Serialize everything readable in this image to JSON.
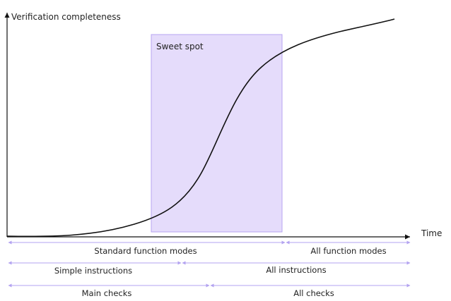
{
  "colors": {
    "axis": "#111111",
    "curve": "#111111",
    "region_fill": "#e5dcfb",
    "region_stroke": "#b7a4f2",
    "range_arrow": "#b3a3f0",
    "text": "#222222"
  },
  "axes": {
    "y_label": "Verification completeness",
    "x_label": "Time"
  },
  "curve": {
    "shape": "s-curve",
    "description_points_note": ""
  },
  "region": {
    "label": "Sweet spot"
  },
  "ranges": [
    {
      "left_label": "Standard function modes",
      "right_label": "All function modes"
    },
    {
      "left_label": "Simple instructions",
      "right_label": "All instructions"
    },
    {
      "left_label": "Main checks",
      "right_label": "All checks"
    }
  ]
}
